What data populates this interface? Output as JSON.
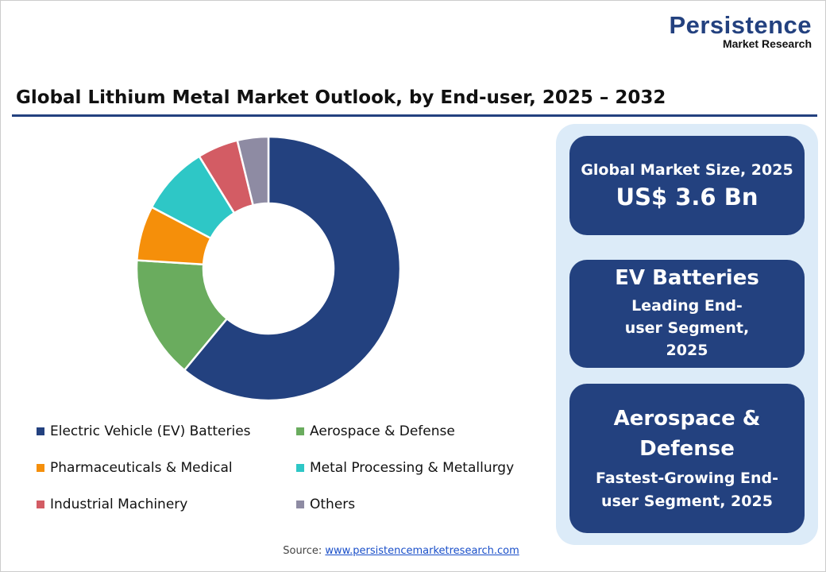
{
  "logo": {
    "line1": "Persistence",
    "line2": "Market Research"
  },
  "title": "Global Lithium Metal Market Outlook, by End-user, 2025 – 2032",
  "chart_data": {
    "type": "pie",
    "donut": true,
    "categories": [
      "Electric Vehicle (EV) Batteries",
      "Aerospace & Defense",
      "Pharmaceuticals & Medical",
      "Metal Processing & Metallurgy",
      "Industrial Machinery",
      "Others"
    ],
    "values": [
      61,
      15,
      6.7,
      8.5,
      5,
      3.8
    ],
    "colors": [
      "#23417f",
      "#6aac5e",
      "#f58f0a",
      "#2ec7c6",
      "#d35c64",
      "#8e8ba3"
    ],
    "legend_position": "bottom"
  },
  "cards": [
    {
      "label": "Global Market Size, 2025",
      "value": "US$ 3.6 Bn"
    },
    {
      "value": "EV Batteries",
      "label": "Leading End-user Segment, 2025"
    },
    {
      "value": "Aerospace & Defense",
      "label": "Fastest-Growing End-user Segment, 2025"
    }
  ],
  "source": {
    "prefix": "Source: ",
    "link": "www.persistencemarketresearch.com"
  }
}
